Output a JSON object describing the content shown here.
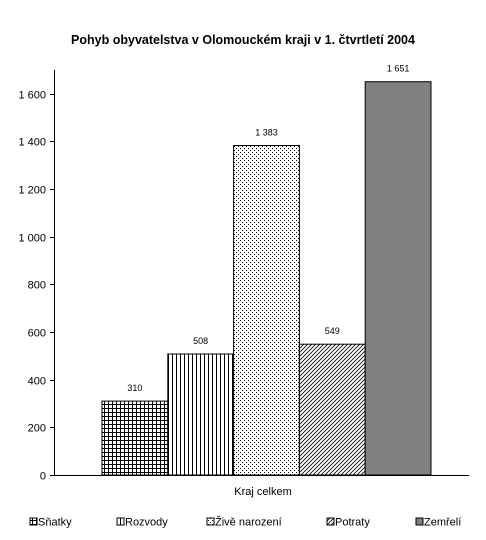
{
  "chart_data": {
    "type": "bar",
    "title": "Pohyb obyvatelstva v Olomouckém kraji v 1. čtvrtletí 2004",
    "xlabel": "",
    "ylabel": "",
    "categories": [
      "Kraj celkem"
    ],
    "category_label": "Kraj celkem",
    "series": [
      {
        "name": "Sňatky",
        "values": [
          310
        ],
        "value_label": "310",
        "pattern": "grid"
      },
      {
        "name": "Rozvody",
        "values": [
          508
        ],
        "value_label": "508",
        "pattern": "vertical"
      },
      {
        "name": "Živě narození",
        "values": [
          1383
        ],
        "value_label": "1 383",
        "pattern": "dots"
      },
      {
        "name": "Potraty",
        "values": [
          549
        ],
        "value_label": "549",
        "pattern": "diagonal"
      },
      {
        "name": "Zemřelí",
        "values": [
          1651
        ],
        "value_label": "1 651",
        "pattern": "solid"
      }
    ],
    "ylim": [
      0,
      1700
    ],
    "yticks": [
      {
        "value": 0,
        "label": "0"
      },
      {
        "value": 200,
        "label": "200"
      },
      {
        "value": 400,
        "label": "400"
      },
      {
        "value": 600,
        "label": "600"
      },
      {
        "value": 800,
        "label": "800"
      },
      {
        "value": 1000,
        "label": "1 000"
      },
      {
        "value": 1200,
        "label": "1 200"
      },
      {
        "value": 1400,
        "label": "1 400"
      },
      {
        "value": 1600,
        "label": "1 600"
      }
    ],
    "grid": false,
    "legend_position": "bottom",
    "colors": {
      "bar_stroke": "#000000",
      "solid_fill": "#808080",
      "background": "#ffffff"
    }
  }
}
